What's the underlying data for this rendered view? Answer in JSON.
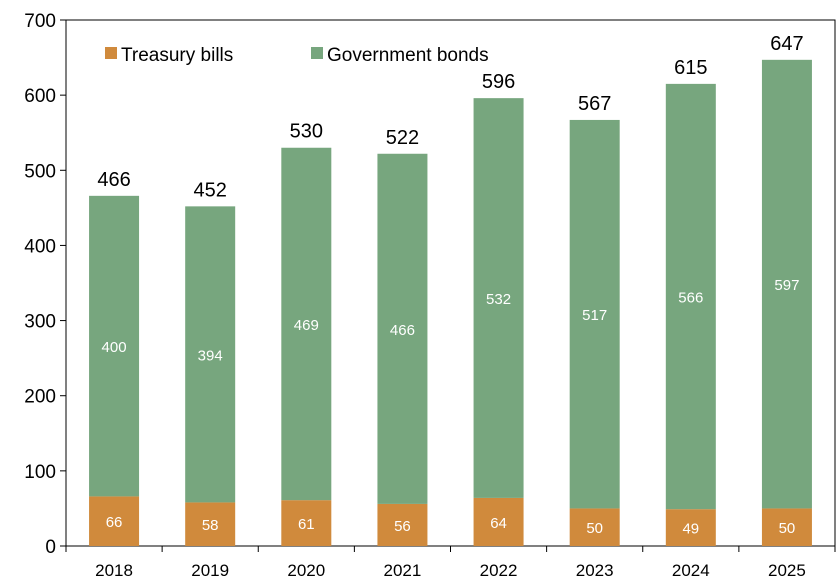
{
  "chart_data": {
    "type": "bar",
    "stacked": true,
    "categories": [
      "2018",
      "2019",
      "2020",
      "2021",
      "2022",
      "2023",
      "2024",
      "2025"
    ],
    "series": [
      {
        "name": "Treasury bills",
        "values": [
          66,
          58,
          61,
          56,
          64,
          50,
          49,
          50
        ],
        "color": "#d08a3c"
      },
      {
        "name": "Government bonds",
        "values": [
          400,
          394,
          469,
          466,
          532,
          517,
          566,
          597
        ],
        "color": "#77a67e"
      }
    ],
    "totals": [
      466,
      452,
      530,
      522,
      596,
      567,
      615,
      647
    ],
    "ylim": [
      0,
      700
    ],
    "yticks": [
      "0",
      "100",
      "200",
      "300",
      "400",
      "500",
      "600",
      "700"
    ],
    "grid": false,
    "legend_position": "top-left"
  }
}
